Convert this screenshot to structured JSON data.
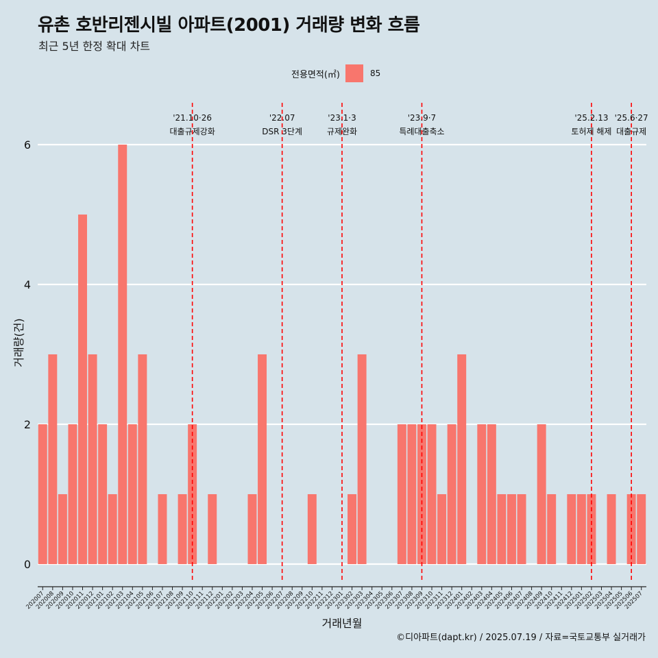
{
  "header": {
    "title": "유촌 호반리젠시빌 아파트(2001) 거래량 변화 흐름",
    "subtitle": "최근 5년 한정 확대 차트"
  },
  "legend": {
    "title": "전용면적(㎡)",
    "items": [
      {
        "label": "85",
        "color": "#F8766D"
      }
    ]
  },
  "caption": "©디아파트(dapt.kr) / 2025.07.19 / 자료=국토교통부 실거래가",
  "chart_data": {
    "type": "bar",
    "xlabel": "거래년월",
    "ylabel": "거래량(건)",
    "ylim": [
      0,
      6
    ],
    "yticks": [
      0,
      2,
      4,
      6
    ],
    "grid": true,
    "legend_position": "top",
    "bar_color": "#F8766D",
    "categories": [
      "202007",
      "202008",
      "202009",
      "202010",
      "202011",
      "202012",
      "202101",
      "202102",
      "202103",
      "202104",
      "202105",
      "202106",
      "202107",
      "202108",
      "202109",
      "202110",
      "202111",
      "202112",
      "202201",
      "202202",
      "202203",
      "202204",
      "202205",
      "202206",
      "202207",
      "202208",
      "202209",
      "202210",
      "202211",
      "202212",
      "202301",
      "202302",
      "202303",
      "202304",
      "202305",
      "202306",
      "202307",
      "202308",
      "202309",
      "202310",
      "202311",
      "202312",
      "202401",
      "202402",
      "202403",
      "202404",
      "202405",
      "202406",
      "202407",
      "202408",
      "202409",
      "202410",
      "202411",
      "202412",
      "202501",
      "202502",
      "202503",
      "202504",
      "202505",
      "202506",
      "202507"
    ],
    "series": [
      {
        "name": "85",
        "values": [
          2,
          3,
          1,
          2,
          5,
          3,
          2,
          1,
          6,
          2,
          3,
          0,
          1,
          0,
          1,
          2,
          0,
          1,
          0,
          0,
          0,
          1,
          3,
          0,
          0,
          0,
          0,
          1,
          0,
          0,
          0,
          1,
          3,
          0,
          0,
          0,
          2,
          2,
          2,
          2,
          1,
          2,
          3,
          0,
          2,
          2,
          1,
          1,
          1,
          0,
          2,
          1,
          0,
          1,
          1,
          1,
          0,
          1,
          0,
          1,
          1
        ]
      }
    ],
    "annotations": [
      {
        "x": "202110",
        "date": "'21.10·26",
        "label": "대출규제강화"
      },
      {
        "x": "202207",
        "date": "'22.07",
        "label": "DSR 3단계"
      },
      {
        "x": "202301",
        "date": "'23.1·3",
        "label": "규제완화"
      },
      {
        "x": "202309",
        "date": "'23.9·7",
        "label": "특례대출축소"
      },
      {
        "x": "202502",
        "date": "'25.2.13",
        "label": "토허제 해제"
      },
      {
        "x": "202506",
        "date": "'25.6·27",
        "label": "대출규제"
      }
    ]
  }
}
